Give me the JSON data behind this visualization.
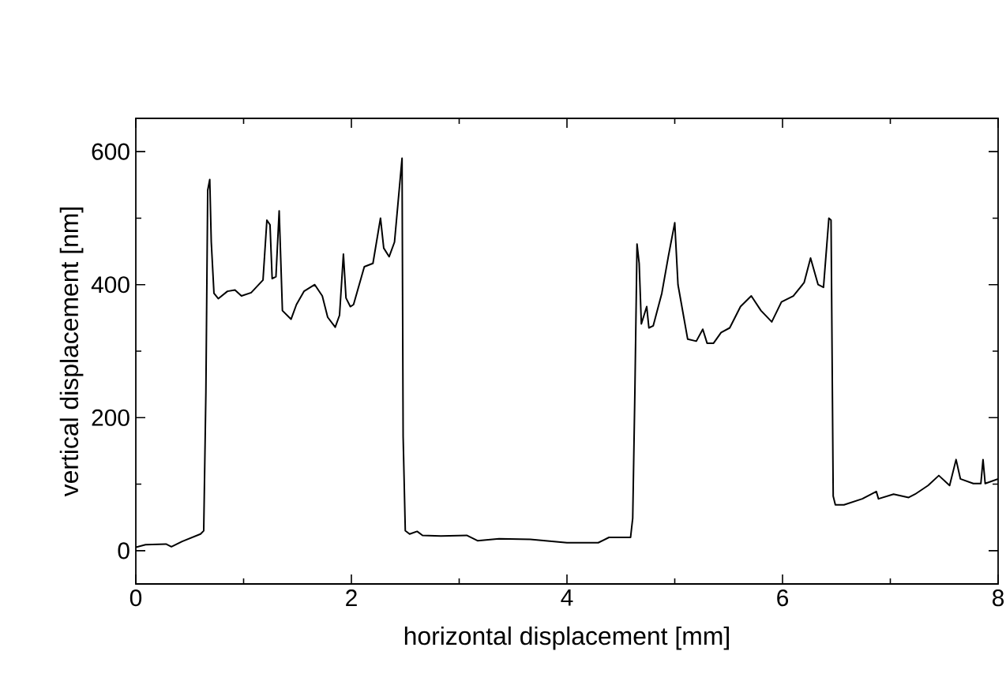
{
  "chart_data": {
    "type": "line",
    "xlabel": "horizontal displacement [mm]",
    "ylabel": "vertical displacement [nm]",
    "xlim": [
      0,
      8
    ],
    "ylim": [
      -50,
      650
    ],
    "xticks": [
      0,
      2,
      4,
      6,
      8
    ],
    "yticks": [
      0,
      200,
      400,
      600
    ],
    "grid": false,
    "marker": "none",
    "line_style": "solid",
    "series": [
      {
        "color": "#000000",
        "x": [
          0,
          0.09,
          0.28,
          0.33,
          0.43,
          0.6,
          0.63,
          0.65,
          0.667,
          0.686,
          0.7,
          0.725,
          0.765,
          0.85,
          0.92,
          0.98,
          1.07,
          1.18,
          1.216,
          1.245,
          1.265,
          1.3,
          1.33,
          1.36,
          1.44,
          1.49,
          1.56,
          1.66,
          1.73,
          1.78,
          1.85,
          1.89,
          1.926,
          1.95,
          1.99,
          2.02,
          2.12,
          2.2,
          2.27,
          2.3,
          2.35,
          2.4,
          2.47,
          2.48,
          2.5,
          2.54,
          2.61,
          2.66,
          2.83,
          3.07,
          3.17,
          3.37,
          3.66,
          4.0,
          4.29,
          4.39,
          4.59,
          4.61,
          4.63,
          4.65,
          4.67,
          4.69,
          4.74,
          4.76,
          4.8,
          4.88,
          4.94,
          5.0,
          5.03,
          5.12,
          5.2,
          5.26,
          5.3,
          5.36,
          5.43,
          5.51,
          5.61,
          5.71,
          5.8,
          5.9,
          5.99,
          6.1,
          6.2,
          6.26,
          6.33,
          6.38,
          6.43,
          6.45,
          6.47,
          6.49,
          6.57,
          6.74,
          6.87,
          6.89,
          7.03,
          7.17,
          7.23,
          7.35,
          7.45,
          7.55,
          7.61,
          7.65,
          7.77,
          7.84,
          7.86,
          7.88,
          8.0
        ],
        "values": [
          5,
          9,
          10,
          6,
          14,
          25,
          30,
          237,
          542,
          558,
          464,
          387,
          379,
          390,
          392,
          383,
          388,
          407,
          497,
          490,
          409,
          412,
          511,
          361,
          348,
          370,
          390,
          400,
          383,
          351,
          336,
          354,
          446,
          380,
          367,
          370,
          427,
          432,
          500,
          455,
          442,
          464,
          590,
          172,
          30,
          25,
          29,
          23,
          22,
          23,
          15,
          18,
          17,
          12,
          12,
          20,
          20,
          49,
          237,
          461,
          432,
          341,
          367,
          335,
          338,
          387,
          442,
          493,
          400,
          318,
          315,
          333,
          312,
          312,
          328,
          335,
          367,
          383,
          361,
          344,
          374,
          383,
          403,
          440,
          400,
          396,
          500,
          497,
          82,
          69,
          69,
          78,
          89,
          78,
          85,
          80,
          85,
          98,
          113,
          98,
          137,
          108,
          101,
          101,
          137,
          101,
          108
        ]
      }
    ]
  }
}
